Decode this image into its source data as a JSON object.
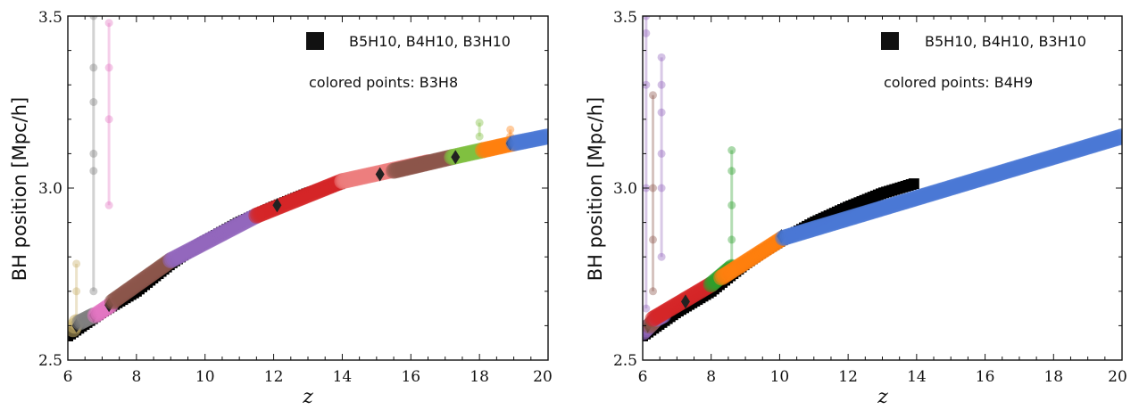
{
  "chart_data": [
    {
      "type": "scatter",
      "xlabel": "z",
      "ylabel": "BH position [Mpc/h]",
      "xlim": [
        6,
        20
      ],
      "ylim": [
        2.5,
        3.5
      ],
      "xticks": [
        "6",
        "8",
        "10",
        "12",
        "14",
        "16",
        "18",
        "20"
      ],
      "yticks": [
        "2.5",
        "3.0",
        "3.5"
      ],
      "legend": {
        "marker_label": "B5H10, B4H10, B3H10",
        "note": "colored points: B3H8",
        "placement": "top-right"
      },
      "reference_curve": {
        "color": "#000000",
        "x": [
          6.0,
          6.5,
          7.0,
          7.5,
          8.0,
          8.5,
          9.0,
          9.5,
          10.0,
          11.0,
          12.0,
          13.0,
          14.0,
          15.0,
          16.0,
          17.0,
          18.0,
          19.0,
          20.0
        ],
        "y": [
          2.57,
          2.605,
          2.64,
          2.67,
          2.7,
          2.74,
          2.78,
          2.815,
          2.845,
          2.9,
          2.945,
          2.985,
          3.015,
          3.04,
          3.065,
          3.085,
          3.11,
          3.13,
          3.15
        ]
      },
      "series": [
        {
          "color": "#c9b06a",
          "x": [
            6.15,
            6.25
          ],
          "y": [
            2.59,
            2.61
          ],
          "spike": {
            "x": 6.25,
            "y": [
              2.62,
              2.7,
              2.78
            ]
          },
          "diamonds": [
            [
              6.25,
              2.6
            ]
          ]
        },
        {
          "color": "#808080",
          "x": [
            6.35,
            6.75
          ],
          "y": [
            2.61,
            2.63
          ],
          "spike": {
            "x": 6.75,
            "y": [
              2.7,
              3.05,
              3.1,
              3.25,
              3.35,
              3.5
            ]
          },
          "diamonds": [
            [
              6.75,
              2.63
            ]
          ]
        },
        {
          "color": "#e377c2",
          "x": [
            6.8,
            7.25
          ],
          "y": [
            2.63,
            2.66
          ],
          "spike": {
            "x": 7.2,
            "y": [
              2.95,
              3.2,
              3.35,
              3.48
            ]
          },
          "diamonds": [
            [
              7.2,
              2.66
            ]
          ]
        },
        {
          "color": "#8c564b",
          "x": [
            7.3,
            9.0
          ],
          "y": [
            2.67,
            2.79
          ],
          "diamonds": [
            [
              9.1,
              2.79
            ]
          ]
        },
        {
          "color": "#9467bd",
          "x": [
            9.0,
            11.5
          ],
          "y": [
            2.79,
            2.92
          ],
          "diamonds": []
        },
        {
          "color": "#d62728",
          "x": [
            11.5,
            14.0
          ],
          "y": [
            2.92,
            3.02
          ],
          "diamonds": [
            [
              12.1,
              2.95
            ]
          ]
        },
        {
          "color": "#ed7e7e",
          "x": [
            14.0,
            16.5
          ],
          "y": [
            3.02,
            3.075
          ],
          "diamonds": [
            [
              15.1,
              3.04
            ]
          ]
        },
        {
          "color": "#8c564b",
          "x": [
            15.5,
            17.2
          ],
          "y": [
            3.05,
            3.09
          ],
          "diamonds": []
        },
        {
          "color": "#7fbf3f",
          "x": [
            17.2,
            18.1
          ],
          "y": [
            3.09,
            3.11
          ],
          "spike": {
            "x": 18.0,
            "y": [
              3.15,
              3.19
            ]
          },
          "diamonds": [
            [
              17.3,
              3.09
            ]
          ]
        },
        {
          "color": "#ff7f0e",
          "x": [
            18.1,
            19.0
          ],
          "y": [
            3.11,
            3.13
          ],
          "spike": {
            "x": 18.9,
            "y": [
              3.15,
              3.17
            ]
          },
          "diamonds": [
            [
              18.9,
              3.13
            ]
          ]
        },
        {
          "color": "#4a78d6",
          "x": [
            19.0,
            20.0
          ],
          "y": [
            3.13,
            3.15
          ],
          "diamonds": []
        }
      ]
    },
    {
      "type": "scatter",
      "xlabel": "z",
      "ylabel": "BH position [Mpc/h]",
      "xlim": [
        6,
        20
      ],
      "ylim": [
        2.5,
        3.5
      ],
      "xticks": [
        "6",
        "8",
        "10",
        "12",
        "14",
        "16",
        "18",
        "20"
      ],
      "yticks": [
        "2.5",
        "3.0",
        "3.5"
      ],
      "legend": {
        "marker_label": "B5H10, B4H10, B3H10",
        "note": "colored points: B4H9",
        "placement": "top-right"
      },
      "reference_curve": {
        "color": "#000000",
        "x": [
          6.0,
          6.5,
          7.0,
          7.5,
          8.0,
          8.5,
          9.0,
          9.5,
          10.0,
          11.0,
          12.0,
          13.0,
          14.0,
          15.0,
          16.0,
          17.0,
          18.0,
          19.0,
          20.0
        ],
        "y": [
          2.57,
          2.605,
          2.64,
          2.67,
          2.7,
          2.74,
          2.78,
          2.815,
          2.845,
          2.9,
          2.945,
          2.985,
          3.015,
          3.04,
          3.065,
          3.085,
          3.11,
          3.13,
          3.15
        ]
      },
      "series": [
        {
          "color": "#9467bd",
          "x": [
            6.0,
            6.3
          ],
          "y": [
            2.58,
            2.61
          ],
          "spike": {
            "x": 6.1,
            "y": [
              2.65,
              3.0,
              3.3,
              3.45,
              3.5
            ]
          },
          "diamonds": [
            [
              6.15,
              2.6
            ]
          ]
        },
        {
          "color": "#8c564b",
          "x": [
            6.2,
            6.4
          ],
          "y": [
            2.6,
            2.62
          ],
          "spike": {
            "x": 6.3,
            "y": [
              2.7,
              2.85,
              3.0,
              3.27
            ]
          },
          "diamonds": []
        },
        {
          "color": "#9467bd",
          "x": [
            6.4,
            6.6
          ],
          "y": [
            2.62,
            2.63
          ],
          "spike": {
            "x": 6.55,
            "y": [
              2.8,
              3.0,
              3.1,
              3.22,
              3.3,
              3.38
            ]
          },
          "diamonds": []
        },
        {
          "color": "#d62728",
          "x": [
            6.3,
            8.0
          ],
          "y": [
            2.62,
            2.72
          ],
          "diamonds": [
            [
              7.25,
              2.67
            ]
          ]
        },
        {
          "color": "#2ca02c",
          "x": [
            8.0,
            8.6
          ],
          "y": [
            2.72,
            2.77
          ],
          "spike": {
            "x": 8.6,
            "y": [
              2.78,
              2.85,
              2.95,
              3.05,
              3.11
            ]
          },
          "diamonds": [
            [
              8.45,
              2.75
            ]
          ]
        },
        {
          "color": "#ff7f0e",
          "x": [
            8.3,
            10.1
          ],
          "y": [
            2.74,
            2.855
          ],
          "diamonds": [
            [
              10.05,
              2.86
            ]
          ]
        },
        {
          "color": "#4a78d6",
          "x": [
            10.1,
            20.0
          ],
          "y": [
            2.855,
            3.15
          ],
          "diamonds": []
        }
      ]
    }
  ]
}
